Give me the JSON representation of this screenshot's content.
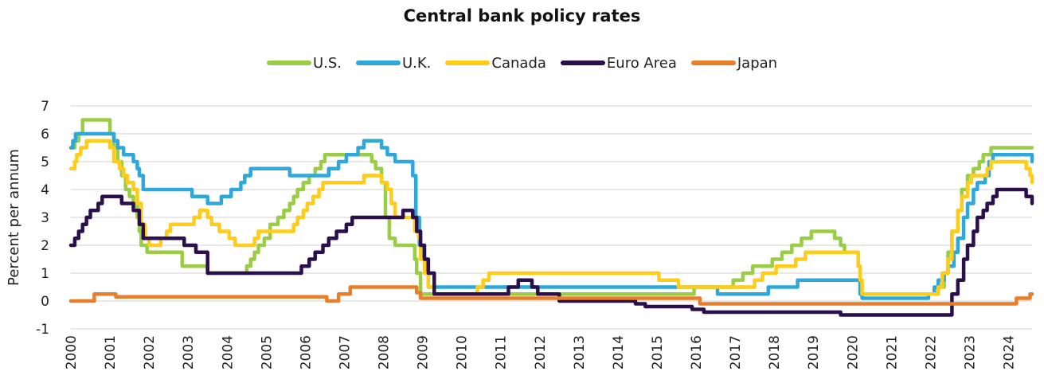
{
  "chart_data": {
    "type": "line",
    "title": "Central bank policy rates",
    "ylabel": "Percent per annum",
    "xlabel": "",
    "xlim": [
      2000.0,
      2024.6
    ],
    "ylim": [
      -1,
      7
    ],
    "y_ticks": [
      7,
      6,
      5,
      4,
      3,
      2,
      1,
      0,
      -1
    ],
    "x_ticks": [
      "2000",
      "2001",
      "2002",
      "2003",
      "2004",
      "2005",
      "2006",
      "2007",
      "2008",
      "2009",
      "2010",
      "2011",
      "2012",
      "2013",
      "2014",
      "2015",
      "2016",
      "2017",
      "2018",
      "2019",
      "2020",
      "2021",
      "2022",
      "2023",
      "2024"
    ],
    "grid": true,
    "legend_position": "top",
    "series": [
      {
        "name": "U.S.",
        "color": "#9ACD45",
        "points": [
          [
            2000.0,
            5.5
          ],
          [
            2000.1,
            5.75
          ],
          [
            2000.2,
            6.0
          ],
          [
            2000.3,
            6.5
          ],
          [
            2000.95,
            6.5
          ],
          [
            2001.0,
            6.0
          ],
          [
            2001.1,
            5.5
          ],
          [
            2001.2,
            5.0
          ],
          [
            2001.3,
            4.5
          ],
          [
            2001.4,
            4.0
          ],
          [
            2001.5,
            3.75
          ],
          [
            2001.6,
            3.5
          ],
          [
            2001.7,
            3.0
          ],
          [
            2001.75,
            2.5
          ],
          [
            2001.8,
            2.0
          ],
          [
            2001.95,
            1.75
          ],
          [
            2002.85,
            1.25
          ],
          [
            2003.5,
            1.0
          ],
          [
            2004.5,
            1.25
          ],
          [
            2004.6,
            1.5
          ],
          [
            2004.7,
            1.75
          ],
          [
            2004.8,
            2.0
          ],
          [
            2004.95,
            2.25
          ],
          [
            2005.1,
            2.75
          ],
          [
            2005.3,
            3.0
          ],
          [
            2005.45,
            3.25
          ],
          [
            2005.6,
            3.5
          ],
          [
            2005.7,
            3.75
          ],
          [
            2005.8,
            4.0
          ],
          [
            2005.95,
            4.25
          ],
          [
            2006.1,
            4.5
          ],
          [
            2006.25,
            4.75
          ],
          [
            2006.4,
            5.0
          ],
          [
            2006.5,
            5.25
          ],
          [
            2007.7,
            5.0
          ],
          [
            2007.8,
            4.75
          ],
          [
            2007.95,
            4.25
          ],
          [
            2008.05,
            3.0
          ],
          [
            2008.15,
            2.25
          ],
          [
            2008.3,
            2.0
          ],
          [
            2008.8,
            1.5
          ],
          [
            2008.85,
            1.0
          ],
          [
            2008.95,
            0.25
          ],
          [
            2015.95,
            0.5
          ],
          [
            2016.95,
            0.75
          ],
          [
            2017.2,
            1.0
          ],
          [
            2017.45,
            1.25
          ],
          [
            2017.95,
            1.5
          ],
          [
            2018.2,
            1.75
          ],
          [
            2018.45,
            2.0
          ],
          [
            2018.7,
            2.25
          ],
          [
            2018.95,
            2.5
          ],
          [
            2019.55,
            2.25
          ],
          [
            2019.7,
            2.0
          ],
          [
            2019.8,
            1.75
          ],
          [
            2020.15,
            1.25
          ],
          [
            2020.2,
            0.25
          ],
          [
            2022.2,
            0.5
          ],
          [
            2022.35,
            1.0
          ],
          [
            2022.45,
            1.75
          ],
          [
            2022.55,
            2.5
          ],
          [
            2022.7,
            3.25
          ],
          [
            2022.8,
            4.0
          ],
          [
            2022.95,
            4.5
          ],
          [
            2023.1,
            4.75
          ],
          [
            2023.25,
            5.0
          ],
          [
            2023.35,
            5.25
          ],
          [
            2023.55,
            5.5
          ],
          [
            2024.6,
            5.5
          ]
        ]
      },
      {
        "name": "U.K.",
        "color": "#2EA8DA",
        "points": [
          [
            2000.0,
            5.5
          ],
          [
            2000.05,
            5.75
          ],
          [
            2000.12,
            6.0
          ],
          [
            2001.1,
            5.75
          ],
          [
            2001.2,
            5.5
          ],
          [
            2001.35,
            5.25
          ],
          [
            2001.6,
            5.0
          ],
          [
            2001.7,
            4.75
          ],
          [
            2001.75,
            4.5
          ],
          [
            2001.85,
            4.0
          ],
          [
            2003.1,
            3.75
          ],
          [
            2003.5,
            3.5
          ],
          [
            2003.85,
            3.75
          ],
          [
            2004.1,
            4.0
          ],
          [
            2004.35,
            4.25
          ],
          [
            2004.45,
            4.5
          ],
          [
            2004.6,
            4.75
          ],
          [
            2005.6,
            4.5
          ],
          [
            2006.6,
            4.75
          ],
          [
            2006.85,
            5.0
          ],
          [
            2007.05,
            5.25
          ],
          [
            2007.35,
            5.5
          ],
          [
            2007.5,
            5.75
          ],
          [
            2007.95,
            5.5
          ],
          [
            2008.1,
            5.25
          ],
          [
            2008.3,
            5.0
          ],
          [
            2008.75,
            4.5
          ],
          [
            2008.83,
            3.0
          ],
          [
            2008.92,
            2.0
          ],
          [
            2009.0,
            1.5
          ],
          [
            2009.08,
            1.0
          ],
          [
            2009.15,
            0.5
          ],
          [
            2016.55,
            0.25
          ],
          [
            2017.85,
            0.5
          ],
          [
            2018.6,
            0.75
          ],
          [
            2020.2,
            0.25
          ],
          [
            2020.25,
            0.1
          ],
          [
            2021.95,
            0.25
          ],
          [
            2022.1,
            0.5
          ],
          [
            2022.2,
            0.75
          ],
          [
            2022.35,
            1.0
          ],
          [
            2022.45,
            1.25
          ],
          [
            2022.6,
            1.75
          ],
          [
            2022.7,
            2.25
          ],
          [
            2022.85,
            3.0
          ],
          [
            2022.95,
            3.5
          ],
          [
            2023.1,
            4.0
          ],
          [
            2023.2,
            4.25
          ],
          [
            2023.4,
            4.5
          ],
          [
            2023.5,
            5.0
          ],
          [
            2023.6,
            5.25
          ],
          [
            2024.6,
            5.0
          ]
        ]
      },
      {
        "name": "Canada",
        "color": "#FFCC1A",
        "points": [
          [
            2000.0,
            4.75
          ],
          [
            2000.1,
            5.0
          ],
          [
            2000.15,
            5.25
          ],
          [
            2000.25,
            5.5
          ],
          [
            2000.4,
            5.75
          ],
          [
            2001.0,
            5.5
          ],
          [
            2001.1,
            5.0
          ],
          [
            2001.25,
            4.75
          ],
          [
            2001.35,
            4.5
          ],
          [
            2001.45,
            4.25
          ],
          [
            2001.6,
            4.0
          ],
          [
            2001.7,
            3.5
          ],
          [
            2001.8,
            2.75
          ],
          [
            2001.9,
            2.25
          ],
          [
            2002.0,
            2.0
          ],
          [
            2002.3,
            2.25
          ],
          [
            2002.45,
            2.5
          ],
          [
            2002.55,
            2.75
          ],
          [
            2003.15,
            3.0
          ],
          [
            2003.3,
            3.25
          ],
          [
            2003.5,
            3.0
          ],
          [
            2003.6,
            2.75
          ],
          [
            2003.8,
            2.5
          ],
          [
            2004.05,
            2.25
          ],
          [
            2004.2,
            2.0
          ],
          [
            2004.7,
            2.25
          ],
          [
            2004.8,
            2.5
          ],
          [
            2005.7,
            2.75
          ],
          [
            2005.8,
            3.0
          ],
          [
            2005.95,
            3.25
          ],
          [
            2006.05,
            3.5
          ],
          [
            2006.2,
            3.75
          ],
          [
            2006.35,
            4.0
          ],
          [
            2006.45,
            4.25
          ],
          [
            2007.5,
            4.5
          ],
          [
            2007.95,
            4.25
          ],
          [
            2008.1,
            4.0
          ],
          [
            2008.2,
            3.5
          ],
          [
            2008.3,
            3.0
          ],
          [
            2008.8,
            2.5
          ],
          [
            2008.9,
            2.25
          ],
          [
            2008.95,
            1.5
          ],
          [
            2009.05,
            1.0
          ],
          [
            2009.15,
            0.5
          ],
          [
            2009.3,
            0.25
          ],
          [
            2010.4,
            0.5
          ],
          [
            2010.55,
            0.75
          ],
          [
            2010.7,
            1.0
          ],
          [
            2015.05,
            0.75
          ],
          [
            2015.55,
            0.5
          ],
          [
            2017.5,
            0.75
          ],
          [
            2017.7,
            1.0
          ],
          [
            2018.05,
            1.25
          ],
          [
            2018.55,
            1.5
          ],
          [
            2018.8,
            1.75
          ],
          [
            2020.15,
            1.25
          ],
          [
            2020.2,
            0.75
          ],
          [
            2020.25,
            0.25
          ],
          [
            2022.2,
            0.5
          ],
          [
            2022.3,
            1.0
          ],
          [
            2022.45,
            1.5
          ],
          [
            2022.55,
            2.5
          ],
          [
            2022.7,
            3.25
          ],
          [
            2022.8,
            3.75
          ],
          [
            2022.95,
            4.25
          ],
          [
            2023.05,
            4.5
          ],
          [
            2023.45,
            4.75
          ],
          [
            2023.55,
            5.0
          ],
          [
            2024.45,
            4.75
          ],
          [
            2024.55,
            4.5
          ],
          [
            2024.6,
            4.25
          ]
        ]
      },
      {
        "name": "Euro Area",
        "color": "#2B0F4D",
        "points": [
          [
            2000.0,
            2.0
          ],
          [
            2000.1,
            2.25
          ],
          [
            2000.2,
            2.5
          ],
          [
            2000.3,
            2.75
          ],
          [
            2000.4,
            3.0
          ],
          [
            2000.5,
            3.25
          ],
          [
            2000.7,
            3.5
          ],
          [
            2000.8,
            3.75
          ],
          [
            2001.3,
            3.5
          ],
          [
            2001.6,
            3.25
          ],
          [
            2001.75,
            2.75
          ],
          [
            2001.85,
            2.25
          ],
          [
            2002.9,
            2.0
          ],
          [
            2003.2,
            1.75
          ],
          [
            2003.5,
            1.0
          ],
          [
            2005.9,
            1.25
          ],
          [
            2006.1,
            1.5
          ],
          [
            2006.25,
            1.75
          ],
          [
            2006.45,
            2.0
          ],
          [
            2006.6,
            2.25
          ],
          [
            2006.8,
            2.5
          ],
          [
            2007.05,
            2.75
          ],
          [
            2007.2,
            3.0
          ],
          [
            2008.5,
            3.25
          ],
          [
            2008.75,
            3.0
          ],
          [
            2008.85,
            2.5
          ],
          [
            2008.95,
            2.0
          ],
          [
            2009.05,
            1.5
          ],
          [
            2009.15,
            1.0
          ],
          [
            2009.3,
            0.25
          ],
          [
            2011.2,
            0.5
          ],
          [
            2011.45,
            0.75
          ],
          [
            2011.8,
            0.5
          ],
          [
            2011.95,
            0.25
          ],
          [
            2012.5,
            0.0
          ],
          [
            2014.45,
            -0.1
          ],
          [
            2014.7,
            -0.2
          ],
          [
            2015.9,
            -0.3
          ],
          [
            2016.2,
            -0.4
          ],
          [
            2019.7,
            -0.5
          ],
          [
            2022.55,
            0.25
          ],
          [
            2022.7,
            0.75
          ],
          [
            2022.85,
            1.5
          ],
          [
            2022.95,
            2.0
          ],
          [
            2023.1,
            2.5
          ],
          [
            2023.2,
            3.0
          ],
          [
            2023.35,
            3.25
          ],
          [
            2023.45,
            3.5
          ],
          [
            2023.6,
            3.75
          ],
          [
            2023.7,
            4.0
          ],
          [
            2024.45,
            3.75
          ],
          [
            2024.6,
            3.5
          ]
        ]
      },
      {
        "name": "Japan",
        "color": "#E77E2A",
        "points": [
          [
            2000.0,
            0.0
          ],
          [
            2000.6,
            0.25
          ],
          [
            2001.15,
            0.15
          ],
          [
            2006.55,
            0.0
          ],
          [
            2006.85,
            0.25
          ],
          [
            2007.15,
            0.5
          ],
          [
            2008.85,
            0.3
          ],
          [
            2008.95,
            0.1
          ],
          [
            2016.1,
            -0.1
          ],
          [
            2024.2,
            0.1
          ],
          [
            2024.55,
            0.25
          ],
          [
            2024.6,
            0.25
          ]
        ]
      }
    ]
  }
}
